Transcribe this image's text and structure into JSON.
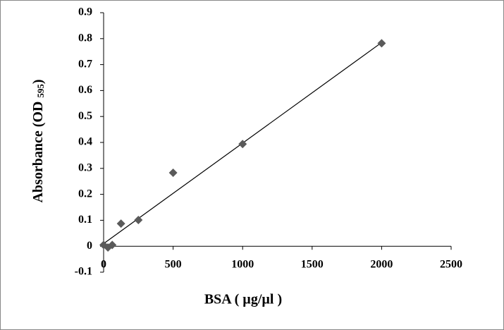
{
  "chart_data": {
    "type": "scatter",
    "x_label": "BSA ( µg/µl )",
    "y_label": "Absorbance (OD",
    "y_label_sub": "595",
    "y_label_end": ")",
    "series": [
      {
        "color": "#5a5a5a",
        "x": [
          0,
          31,
          62,
          125,
          250,
          500,
          1000,
          2000
        ],
        "values": [
          0.005,
          -0.005,
          0.005,
          0.087,
          0.101,
          0.283,
          0.394,
          0.782
        ]
      }
    ],
    "trendline": {
      "color": "#000000",
      "x": [
        0,
        2000
      ],
      "values": [
        0.01,
        0.785
      ]
    },
    "xlim": [
      0,
      2500
    ],
    "xticks": [
      0,
      500,
      1000,
      1500,
      2000,
      2500
    ],
    "ylim": [
      -0.1,
      0.9
    ],
    "yticks": [
      0.9,
      0.8,
      0.7,
      0.6,
      0.5,
      0.4,
      0.3,
      0.2,
      0.1,
      0,
      -0.1
    ],
    "grid": false
  }
}
